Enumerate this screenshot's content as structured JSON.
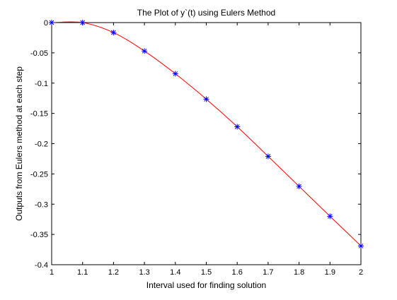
{
  "chart_data": {
    "type": "line",
    "title": "The Plot of y`(t) using Eulers Method",
    "xlabel": "Interval used for finding solution",
    "ylabel": "Outputs from Eulers method at each step",
    "xlim": [
      1,
      2
    ],
    "ylim": [
      -0.4,
      0
    ],
    "grid": false,
    "x_ticks": [
      1,
      1.1,
      1.2,
      1.3,
      1.4,
      1.5,
      1.6,
      1.7,
      1.8,
      1.9,
      2
    ],
    "x_tick_labels": [
      "1",
      "1.1",
      "1.2",
      "1.3",
      "1.4",
      "1.5",
      "1.6",
      "1.7",
      "1.8",
      "1.9",
      "2"
    ],
    "y_ticks": [
      0,
      -0.05,
      -0.1,
      -0.15,
      -0.2,
      -0.25,
      -0.3,
      -0.35,
      -0.4
    ],
    "y_tick_labels": [
      "0",
      "-0.05",
      "-0.1",
      "-0.15",
      "-0.2",
      "-0.25",
      "-0.3",
      "-0.35",
      "-0.4"
    ],
    "series": [
      {
        "marker": "asterisk",
        "line_color": "#ff0000",
        "marker_color": "#0000ff",
        "x": [
          1,
          1.1,
          1.2,
          1.3,
          1.4,
          1.5,
          1.6,
          1.7,
          1.8,
          1.9,
          2
        ],
        "y": [
          0,
          0,
          -0.0165,
          -0.047,
          -0.0845,
          -0.1265,
          -0.172,
          -0.221,
          -0.2705,
          -0.32,
          -0.369
        ]
      }
    ]
  }
}
